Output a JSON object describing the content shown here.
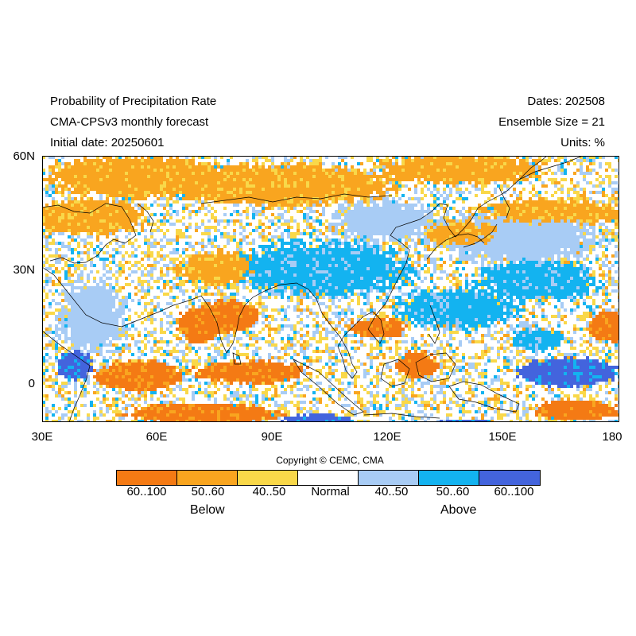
{
  "header": {
    "title": "Probability of Precipitation Rate",
    "model": "CMA-CPSv3 monthly forecast",
    "initial_date": "Initial date: 20250601",
    "dates": "Dates: 202508",
    "ensemble": "Ensemble Size = 21",
    "units": "Units: %"
  },
  "map": {
    "lon_range": [
      30,
      180
    ],
    "lat_range": [
      -10,
      60
    ],
    "lon_ticks": [
      "30E",
      "60E",
      "90E",
      "120E",
      "150E",
      "180"
    ],
    "lat_ticks": [
      "60N",
      "30N",
      "0"
    ]
  },
  "copyright": "Copyright © CEMC, CMA",
  "legend": {
    "categories": [
      {
        "label": "60..100",
        "color": "#f47a14",
        "tercile": "Below"
      },
      {
        "label": "50..60",
        "color": "#f9a51f",
        "tercile": "Below"
      },
      {
        "label": "40..50",
        "color": "#f9d849",
        "tercile": "Below"
      },
      {
        "label": "Normal",
        "color": "#ffffff",
        "tercile": "Normal"
      },
      {
        "label": "40..50",
        "color": "#a8ccf5",
        "tercile": "Above"
      },
      {
        "label": "50..60",
        "color": "#13b3f0",
        "tercile": "Above"
      },
      {
        "label": "60..100",
        "color": "#4364dd",
        "tercile": "Above"
      }
    ],
    "below_label": "Below",
    "above_label": "Above"
  }
}
